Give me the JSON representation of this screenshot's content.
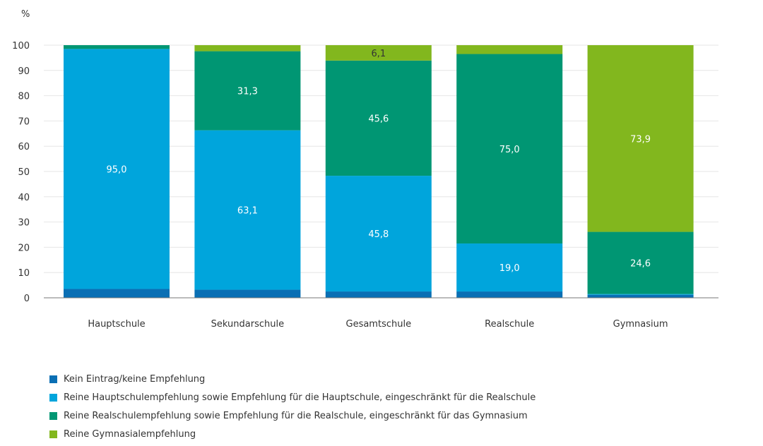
{
  "chart_data": {
    "type": "bar",
    "stacked": true,
    "unit_label": "%",
    "ylim": [
      0,
      100
    ],
    "yticks": [
      0,
      10,
      20,
      30,
      40,
      50,
      60,
      70,
      80,
      90,
      100
    ],
    "grid": true,
    "legend_position": "bottom-left",
    "categories": [
      "Hauptschule",
      "Sekundarschule",
      "Gesamtschule",
      "Realschule",
      "Gymnasium"
    ],
    "series": [
      {
        "name": "Kein Eintrag/keine Empfehlung",
        "color": "#0a6fb4",
        "values": [
          3.5,
          3.2,
          2.5,
          2.5,
          1.2
        ],
        "labels": [
          "",
          "",
          "",
          "",
          ""
        ]
      },
      {
        "name": "Reine Hauptschulempfehlung sowie Empfehlung für die Hauptschule, eingeschränkt für die Realschule",
        "color": "#00a5dc",
        "values": [
          95.0,
          63.1,
          45.8,
          19.0,
          0.3
        ],
        "labels": [
          "95,0",
          "63,1",
          "45,8",
          "19,0",
          ""
        ]
      },
      {
        "name": "Reine Realschulempfehlung sowie Empfehlung für die Realschule, eingeschränkt für das Gymnasium",
        "color": "#009673",
        "values": [
          1.5,
          31.3,
          45.6,
          75.0,
          24.6
        ],
        "labels": [
          "",
          "31,3",
          "45,6",
          "75,0",
          "24,6"
        ]
      },
      {
        "name": "Reine Gymnasialempfehlung",
        "color": "#82b71e",
        "values": [
          0.0,
          2.4,
          6.1,
          3.5,
          73.9
        ],
        "labels": [
          "",
          "",
          "6,1",
          "",
          "73,9"
        ]
      }
    ]
  }
}
